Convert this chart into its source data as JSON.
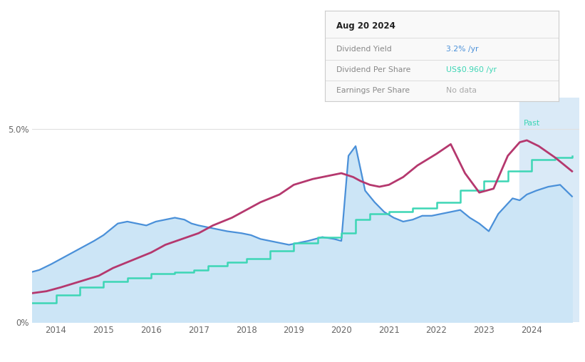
{
  "bg_color": "#ffffff",
  "future_bg_color": "#daeaf7",
  "future_start_x": 2023.75,
  "dividend_yield_color": "#4a90d9",
  "dividend_yield_fill": "#cce5f6",
  "dividend_per_share_color": "#3dd6b5",
  "earnings_per_share_color": "#b5386e",
  "x_ticks": [
    2014,
    2015,
    2016,
    2017,
    2018,
    2019,
    2020,
    2021,
    2022,
    2023,
    2024
  ],
  "xlim": [
    2013.5,
    2025.0
  ],
  "ylim": [
    0,
    5.8
  ],
  "yticks": [
    0,
    5.0
  ],
  "yticklabels": [
    "0%",
    "5.0%"
  ],
  "tooltip_date": "Aug 20 2024",
  "tooltip_dy_label": "Dividend Yield",
  "tooltip_dy_val": "3.2% /yr",
  "tooltip_dps_label": "Dividend Per Share",
  "tooltip_dps_val": "US$0.960 /yr",
  "tooltip_eps_label": "Earnings Per Share",
  "tooltip_eps_val": "No data",
  "past_label": "Past",
  "legend_labels": [
    "Dividend Yield",
    "Dividend Per Share",
    "Earnings Per Share"
  ],
  "dy_x": [
    2013.5,
    2013.65,
    2013.9,
    2014.2,
    2014.5,
    2014.8,
    2015.0,
    2015.15,
    2015.3,
    2015.5,
    2015.7,
    2015.9,
    2016.1,
    2016.3,
    2016.5,
    2016.7,
    2016.85,
    2017.0,
    2017.2,
    2017.4,
    2017.6,
    2017.9,
    2018.1,
    2018.3,
    2018.5,
    2018.7,
    2018.9,
    2019.1,
    2019.3,
    2019.6,
    2019.85,
    2020.0,
    2020.15,
    2020.3,
    2020.5,
    2020.7,
    2020.9,
    2021.1,
    2021.3,
    2021.5,
    2021.7,
    2021.9,
    2022.1,
    2022.3,
    2022.5,
    2022.7,
    2022.9,
    2023.1,
    2023.3,
    2023.6,
    2023.75,
    2023.9,
    2024.1,
    2024.35,
    2024.6,
    2024.85
  ],
  "dy_y": [
    1.3,
    1.35,
    1.5,
    1.7,
    1.9,
    2.1,
    2.25,
    2.4,
    2.55,
    2.6,
    2.55,
    2.5,
    2.6,
    2.65,
    2.7,
    2.65,
    2.55,
    2.5,
    2.45,
    2.4,
    2.35,
    2.3,
    2.25,
    2.15,
    2.1,
    2.05,
    2.0,
    2.05,
    2.1,
    2.2,
    2.15,
    2.1,
    4.3,
    4.55,
    3.4,
    3.1,
    2.85,
    2.7,
    2.6,
    2.65,
    2.75,
    2.75,
    2.8,
    2.85,
    2.9,
    2.7,
    2.55,
    2.35,
    2.8,
    3.2,
    3.15,
    3.3,
    3.4,
    3.5,
    3.55,
    3.25
  ],
  "dps_x": [
    2013.5,
    2014.0,
    2014.5,
    2015.0,
    2015.5,
    2016.0,
    2016.5,
    2016.9,
    2017.2,
    2017.6,
    2018.0,
    2018.5,
    2019.0,
    2019.5,
    2020.0,
    2020.3,
    2020.6,
    2021.0,
    2021.5,
    2022.0,
    2022.5,
    2023.0,
    2023.5,
    2024.0,
    2024.5,
    2024.85
  ],
  "dps_y": [
    0.5,
    0.7,
    0.9,
    1.05,
    1.15,
    1.25,
    1.3,
    1.35,
    1.45,
    1.55,
    1.65,
    1.85,
    2.05,
    2.2,
    2.3,
    2.65,
    2.8,
    2.85,
    2.95,
    3.1,
    3.4,
    3.65,
    3.9,
    4.2,
    4.25,
    4.3
  ],
  "eps_x": [
    2013.5,
    2013.8,
    2014.1,
    2014.5,
    2014.9,
    2015.2,
    2015.6,
    2016.0,
    2016.3,
    2016.65,
    2017.0,
    2017.3,
    2017.7,
    2018.0,
    2018.3,
    2018.7,
    2019.0,
    2019.4,
    2019.8,
    2020.0,
    2020.25,
    2020.4,
    2020.6,
    2020.8,
    2021.0,
    2021.3,
    2021.6,
    2022.0,
    2022.3,
    2022.6,
    2022.9,
    2023.2,
    2023.5,
    2023.75,
    2023.9,
    2024.15,
    2024.5,
    2024.85
  ],
  "eps_y": [
    0.75,
    0.8,
    0.9,
    1.05,
    1.2,
    1.4,
    1.6,
    1.8,
    2.0,
    2.15,
    2.3,
    2.5,
    2.7,
    2.9,
    3.1,
    3.3,
    3.55,
    3.7,
    3.8,
    3.85,
    3.75,
    3.65,
    3.55,
    3.5,
    3.55,
    3.75,
    4.05,
    4.35,
    4.6,
    3.85,
    3.35,
    3.45,
    4.3,
    4.65,
    4.7,
    4.55,
    4.25,
    3.9
  ]
}
